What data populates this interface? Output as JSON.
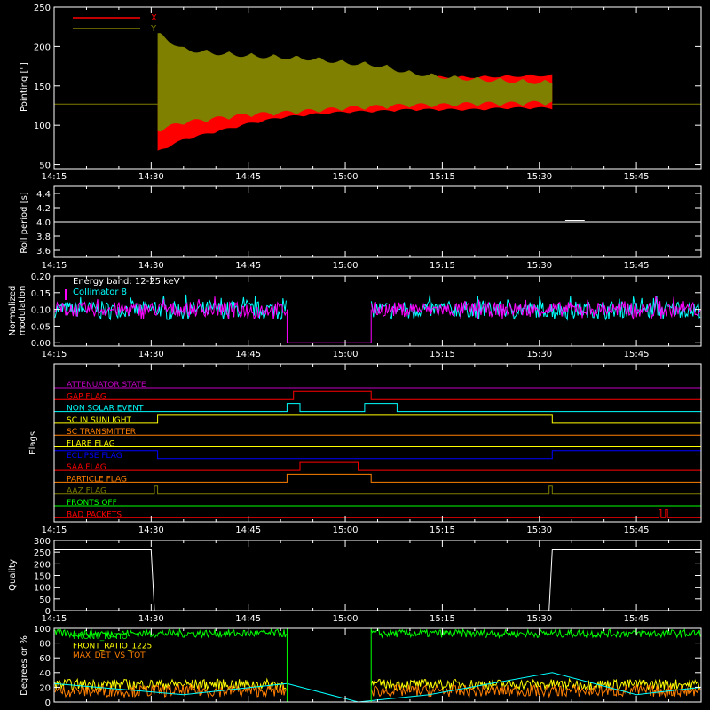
{
  "colors": {
    "background": "#000000",
    "axes": "#ffffff",
    "red": "#ff0000",
    "olive": "#7f7f00",
    "magenta": "#ff00ff",
    "cyan": "#00ffff",
    "orange": "#ff7f00",
    "yellow": "#ffff00",
    "blue": "#0000ff",
    "green": "#00ff00",
    "gray": "#cfcfcf",
    "purple": "#c000c0"
  },
  "chart_data": [
    {
      "id": "pointing",
      "type": "area",
      "ylabel": "Pointing [\"]",
      "xlabel": "",
      "x_ticks": [
        "14:15",
        "14:30",
        "14:45",
        "15:00",
        "15:15",
        "15:30",
        "15:45"
      ],
      "y_ticks": [
        "50",
        "100",
        "150",
        "200",
        "250"
      ],
      "ylim": [
        45,
        250
      ],
      "legend": {
        "placement": "top-left",
        "entries": [
          {
            "label": "X",
            "color": "#ff0000"
          },
          {
            "label": "Y",
            "color": "#7f7f00"
          }
        ]
      },
      "baseline_value": 127,
      "active_window": [
        "14:31",
        "15:32"
      ],
      "series": [
        {
          "name": "X",
          "times": [
            "14:31",
            "14:35",
            "14:40",
            "14:45",
            "14:50",
            "14:55",
            "15:00",
            "15:05",
            "15:10",
            "15:15",
            "15:20",
            "15:25",
            "15:30",
            "15:32"
          ],
          "upper": [
            180,
            175,
            172,
            168,
            166,
            164,
            162,
            162,
            163,
            163,
            163,
            164,
            165,
            165
          ],
          "lower": [
            65,
            80,
            90,
            100,
            108,
            112,
            115,
            116,
            118,
            118,
            118,
            120,
            120,
            120
          ]
        },
        {
          "name": "Y",
          "times": [
            "14:31",
            "14:35",
            "14:40",
            "14:45",
            "14:50",
            "14:55",
            "15:00",
            "15:05",
            "15:10",
            "15:15",
            "15:20",
            "15:25",
            "15:30",
            "15:32"
          ],
          "upper": [
            220,
            200,
            195,
            192,
            190,
            188,
            183,
            180,
            170,
            165,
            162,
            160,
            158,
            158
          ],
          "lower": [
            90,
            100,
            105,
            110,
            112,
            115,
            118,
            120,
            122,
            122,
            124,
            124,
            125,
            125
          ]
        }
      ]
    },
    {
      "id": "roll-period",
      "type": "line",
      "ylabel": "Roll period [s]",
      "xlabel": "",
      "x_ticks": [
        "14:15",
        "14:30",
        "14:45",
        "15:00",
        "15:15",
        "15:30",
        "15:45"
      ],
      "y_ticks": [
        "3.6",
        "3.8",
        "4.0",
        "4.2",
        "4.4"
      ],
      "ylim": [
        3.5,
        4.5
      ],
      "series": [
        {
          "name": "",
          "value": 4.0
        }
      ]
    },
    {
      "id": "modulation",
      "type": "line",
      "ylabel_lines": [
        "Normalized",
        "modulation"
      ],
      "xlabel": "",
      "x_ticks": [
        "14:15",
        "14:30",
        "14:45",
        "15:00",
        "15:15",
        "15:30",
        "15:45"
      ],
      "y_ticks": [
        "0.00",
        "0.05",
        "0.10",
        "0.15",
        "0.20"
      ],
      "ylim": [
        -0.01,
        0.2
      ],
      "annotation": "Energy band: 12-25 keV",
      "legend": {
        "placement": "top-left",
        "entries": [
          {
            "label": "Collimator 8",
            "color": "#00ffff"
          }
        ]
      },
      "gap": [
        "14:51",
        "15:04"
      ],
      "series": [
        {
          "name": "Collimator 8",
          "mean": 0.1,
          "range": [
            0.07,
            0.16
          ]
        },
        {
          "name": "",
          "mean": 0.1,
          "range": [
            0.07,
            0.15
          ]
        }
      ]
    },
    {
      "id": "flags",
      "type": "line",
      "ylabel": "Flags",
      "xlabel": "",
      "x_ticks": [
        "14:15",
        "14:30",
        "14:45",
        "15:00",
        "15:15",
        "15:30",
        "15:45"
      ],
      "series": [
        {
          "name": "ATTENUATOR STATE",
          "color": "#c000c0",
          "segments": []
        },
        {
          "name": "GAP FLAG",
          "color": "#ff0000",
          "segments": [
            [
              "14:52",
              "15:04"
            ]
          ]
        },
        {
          "name": "NON SOLAR EVENT",
          "color": "#00ffff",
          "segments": [
            [
              "14:51",
              "14:53"
            ],
            [
              "15:03",
              "15:08"
            ]
          ]
        },
        {
          "name": "SC IN SUNLIGHT",
          "color": "#ffff00",
          "segments": [
            [
              "14:31",
              "15:32"
            ]
          ]
        },
        {
          "name": "SC TRANSMITTER",
          "color": "#ff7f00",
          "segments": []
        },
        {
          "name": "FLARE FLAG",
          "color": "#ffff00",
          "segments": []
        },
        {
          "name": "ECLIPSE FLAG",
          "color": "#0000ff",
          "segments": [
            [
              "14:15",
              "14:31"
            ],
            [
              "15:32",
              "15:55"
            ]
          ]
        },
        {
          "name": "SAA FLAG",
          "color": "#ff0000",
          "segments": [
            [
              "14:53",
              "15:02"
            ]
          ]
        },
        {
          "name": "PARTICLE FLAG",
          "color": "#ff7f00",
          "segments": [
            [
              "14:51",
              "15:04"
            ]
          ]
        },
        {
          "name": "AAZ FLAG",
          "color": "#7f7f00",
          "segments": [
            [
              "14:30.5",
              "14:31"
            ],
            [
              "15:31.5",
              "15:32"
            ]
          ]
        },
        {
          "name": "FRONTS OFF",
          "color": "#00ff00",
          "segments": []
        },
        {
          "name": "BAD PACKETS",
          "color": "#ff0000",
          "segments": [
            [
              "15:48.5",
              "15:48.8"
            ],
            [
              "15:49.5",
              "15:49.8"
            ]
          ]
        }
      ]
    },
    {
      "id": "quality",
      "type": "line",
      "ylabel": "Quality",
      "xlabel": "",
      "x_ticks": [
        "14:15",
        "14:30",
        "14:45",
        "15:00",
        "15:15",
        "15:30",
        "15:45"
      ],
      "y_ticks": [
        "0",
        "50",
        "100",
        "150",
        "200",
        "250",
        "300"
      ],
      "ylim": [
        0,
        300
      ],
      "series": [
        {
          "name": "",
          "x": [
            "14:15",
            "14:30",
            "14:30.5",
            "15:31.5",
            "15:32",
            "15:55"
          ],
          "y": [
            260,
            260,
            0,
            0,
            260,
            260
          ]
        }
      ]
    },
    {
      "id": "ratios",
      "type": "line",
      "ylabel": "Degrees or %",
      "xlabel": "",
      "y_ticks": [
        "0",
        "20",
        "40",
        "60",
        "80",
        "100"
      ],
      "ylim": [
        0,
        100
      ],
      "gap": [
        "14:51",
        "15:04"
      ],
      "legend": {
        "placement": "top-left",
        "entries": [
          {
            "label": "FRONT_RATIO",
            "color": "#00ff00"
          },
          {
            "label": "FRONT_RATIO_1225",
            "color": "#ffff00"
          },
          {
            "label": "MAX_DET_VS_TOT",
            "color": "#ff7f00"
          }
        ]
      },
      "series": [
        {
          "name": "FRONT_RATIO",
          "mean": 93,
          "range": [
            88,
            99
          ]
        },
        {
          "name": "FRONT_RATIO_1225",
          "mean": 24,
          "range": [
            18,
            32
          ]
        },
        {
          "name": "MAX_DET_VS_TOT",
          "mean": 15,
          "range": [
            8,
            24
          ]
        },
        {
          "name": "",
          "times": [
            "14:15",
            "14:35",
            "14:51",
            "15:02",
            "15:13",
            "15:32",
            "15:45",
            "15:55"
          ],
          "values": [
            25,
            10,
            25,
            0,
            10,
            40,
            10,
            20
          ]
        }
      ]
    }
  ]
}
